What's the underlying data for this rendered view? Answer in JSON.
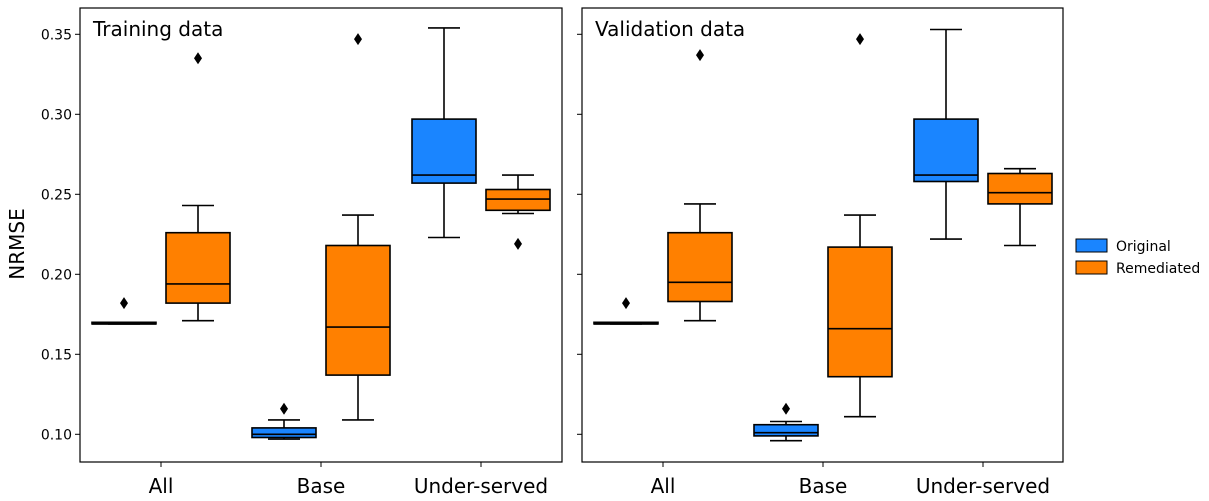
{
  "chart_data": {
    "type": "box",
    "ylabel": "NRMSE",
    "ylim": [
      0.09,
      0.36
    ],
    "yticks": [
      0.1,
      0.15,
      0.2,
      0.25,
      0.3,
      0.35
    ],
    "ytick_labels": [
      "0.10",
      "0.15",
      "0.20",
      "0.25",
      "0.30",
      "0.35"
    ],
    "categories": [
      "All",
      "Base",
      "Under-served"
    ],
    "legend": {
      "placement": "right",
      "entries": [
        {
          "name": "Original",
          "color": "#1a85ff"
        },
        {
          "name": "Remediated",
          "color": "#ff8000"
        }
      ]
    },
    "panels": [
      {
        "title": "Training data",
        "series": [
          {
            "name": "Original",
            "color": "#1a85ff",
            "boxes": [
              {
                "category": "All",
                "whisker_low": 0.169,
                "q1": 0.169,
                "median": 0.169,
                "q3": 0.17,
                "whisker_high": 0.17,
                "outliers": [
                  0.182
                ]
              },
              {
                "category": "Base",
                "whisker_low": 0.097,
                "q1": 0.098,
                "median": 0.1,
                "q3": 0.104,
                "whisker_high": 0.109,
                "outliers": [
                  0.116
                ]
              },
              {
                "category": "Under-served",
                "whisker_low": 0.223,
                "q1": 0.257,
                "median": 0.262,
                "q3": 0.297,
                "whisker_high": 0.354,
                "outliers": []
              }
            ]
          },
          {
            "name": "Remediated",
            "color": "#ff8000",
            "boxes": [
              {
                "category": "All",
                "whisker_low": 0.171,
                "q1": 0.182,
                "median": 0.194,
                "q3": 0.226,
                "whisker_high": 0.243,
                "outliers": [
                  0.335
                ]
              },
              {
                "category": "Base",
                "whisker_low": 0.109,
                "q1": 0.137,
                "median": 0.167,
                "q3": 0.218,
                "whisker_high": 0.237,
                "outliers": [
                  0.347
                ]
              },
              {
                "category": "Under-served",
                "whisker_low": 0.238,
                "q1": 0.24,
                "median": 0.247,
                "q3": 0.253,
                "whisker_high": 0.262,
                "outliers": [
                  0.219
                ]
              }
            ]
          }
        ]
      },
      {
        "title": "Validation data",
        "series": [
          {
            "name": "Original",
            "color": "#1a85ff",
            "boxes": [
              {
                "category": "All",
                "whisker_low": 0.169,
                "q1": 0.169,
                "median": 0.169,
                "q3": 0.17,
                "whisker_high": 0.17,
                "outliers": [
                  0.182
                ]
              },
              {
                "category": "Base",
                "whisker_low": 0.096,
                "q1": 0.099,
                "median": 0.101,
                "q3": 0.106,
                "whisker_high": 0.108,
                "outliers": [
                  0.116
                ]
              },
              {
                "category": "Under-served",
                "whisker_low": 0.222,
                "q1": 0.258,
                "median": 0.262,
                "q3": 0.297,
                "whisker_high": 0.353,
                "outliers": []
              }
            ]
          },
          {
            "name": "Remediated",
            "color": "#ff8000",
            "boxes": [
              {
                "category": "All",
                "whisker_low": 0.171,
                "q1": 0.183,
                "median": 0.195,
                "q3": 0.226,
                "whisker_high": 0.244,
                "outliers": [
                  0.337
                ]
              },
              {
                "category": "Base",
                "whisker_low": 0.111,
                "q1": 0.136,
                "median": 0.166,
                "q3": 0.217,
                "whisker_high": 0.237,
                "outliers": [
                  0.347
                ]
              },
              {
                "category": "Under-served",
                "whisker_low": 0.218,
                "q1": 0.244,
                "median": 0.251,
                "q3": 0.263,
                "whisker_high": 0.266,
                "outliers": []
              }
            ]
          }
        ]
      }
    ]
  }
}
